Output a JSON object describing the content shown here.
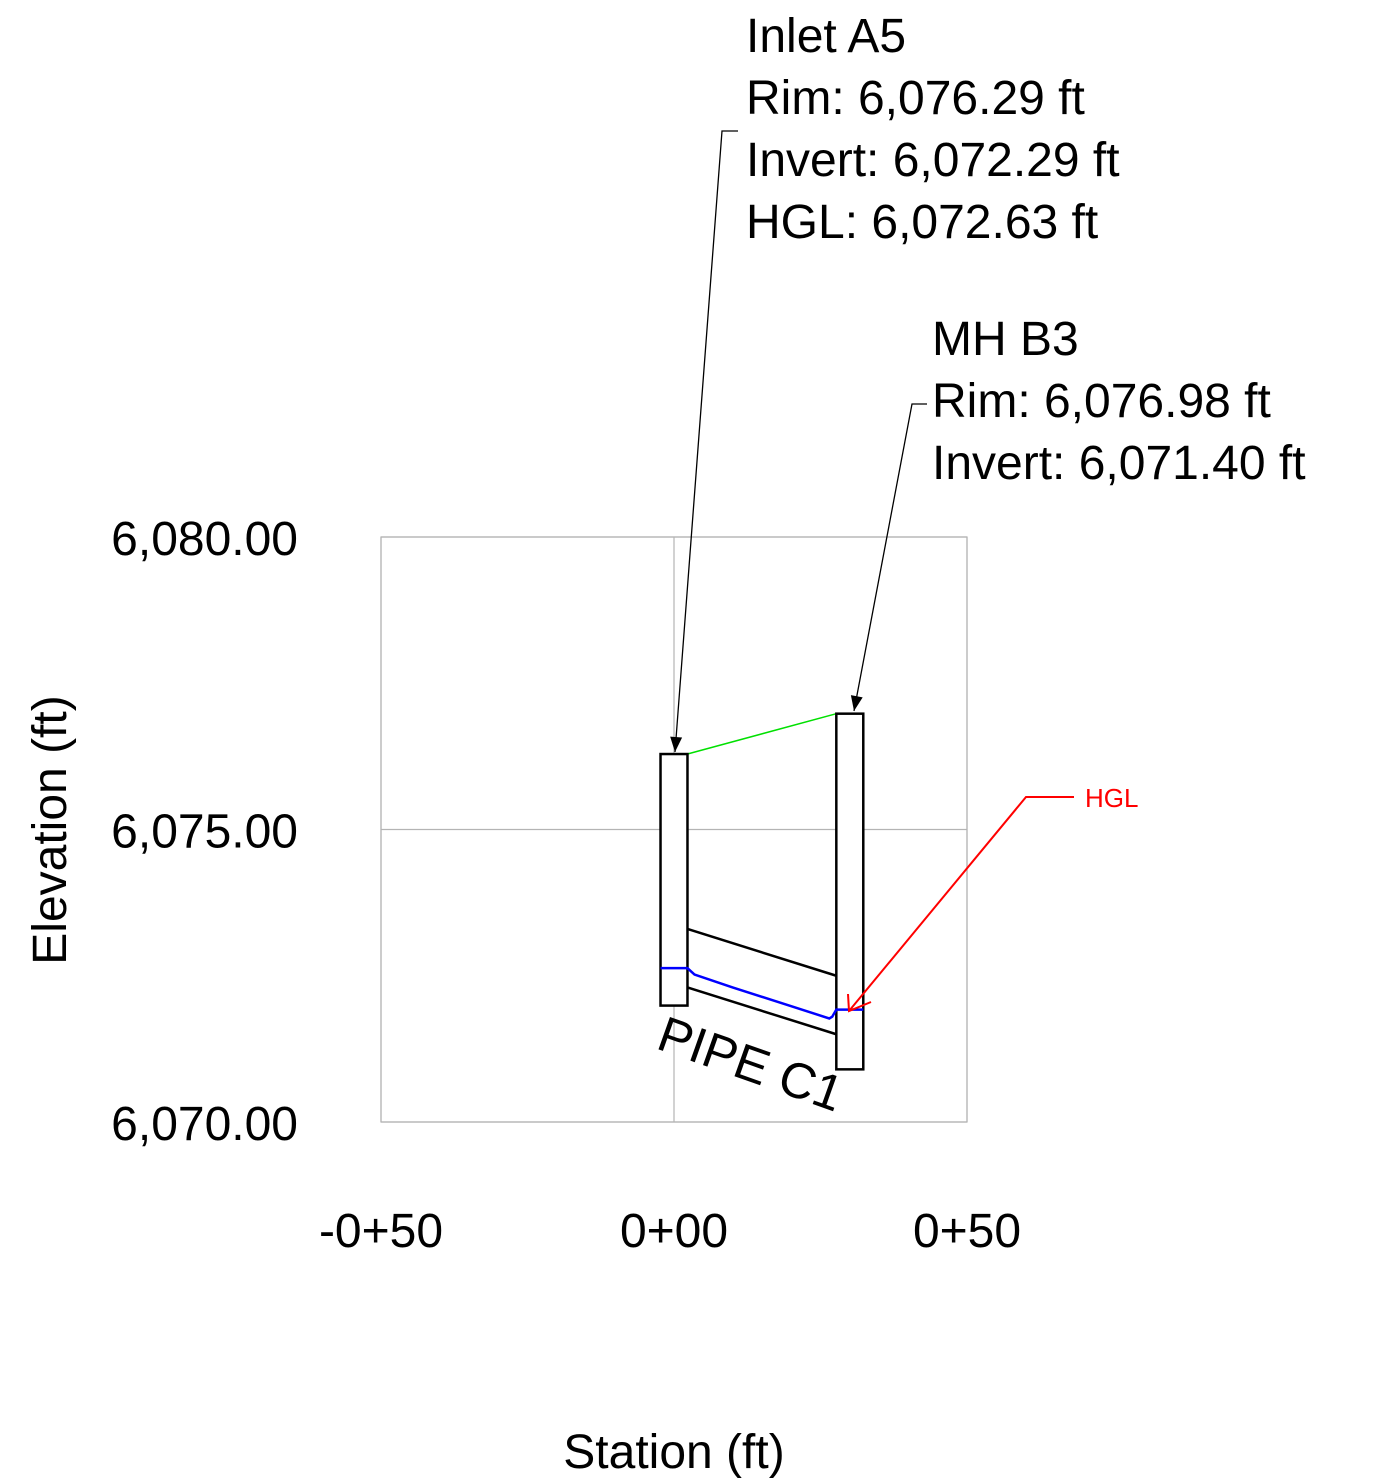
{
  "chart_data": {
    "type": "profile",
    "xlabel": "Station (ft)",
    "ylabel": "Elevation (ft)",
    "x_ticks": [
      {
        "value": -50,
        "label": "-0+50"
      },
      {
        "value": 0,
        "label": "0+00"
      },
      {
        "value": 50,
        "label": "0+50"
      }
    ],
    "y_ticks": [
      {
        "value": 6070,
        "label": "6,070.00"
      },
      {
        "value": 6075,
        "label": "6,075.00"
      },
      {
        "value": 6080,
        "label": "6,080.00"
      }
    ],
    "xlim": [
      -50,
      50
    ],
    "ylim": [
      6070,
      6080
    ],
    "grid": true,
    "structures": [
      {
        "name": "Inlet A5",
        "station": 0,
        "rim": 6076.29,
        "invert": 6072.29,
        "hgl": 6072.63,
        "label_lines": [
          "Inlet A5",
          "Rim: 6,076.29 ft",
          "Invert: 6,072.29 ft",
          "HGL: 6,072.63 ft"
        ]
      },
      {
        "name": "MH B3",
        "station": 30,
        "rim": 6076.98,
        "invert": 6071.4,
        "label_lines": [
          "MH B3",
          "Rim: 6,076.98 ft",
          "Invert: 6,071.40 ft"
        ]
      }
    ],
    "pipe": {
      "name": "PIPE C1",
      "start_station": 2.3,
      "end_station": 27.7,
      "invert_up": 6072.3,
      "invert_down": 6071.5,
      "crown_up": 6073.3,
      "crown_down": 6072.5
    },
    "hgl_line": {
      "label": "HGL",
      "points": [
        [
          -2.3,
          6072.63
        ],
        [
          2.3,
          6072.63
        ],
        [
          3.5,
          6072.52
        ],
        [
          10,
          6072.3
        ],
        [
          20,
          6071.98
        ],
        [
          26.5,
          6071.77
        ],
        [
          27.0,
          6071.8
        ],
        [
          27.7,
          6071.92
        ],
        [
          32.3,
          6071.92
        ]
      ]
    },
    "colors": {
      "grid": "#b4b4b4",
      "structure": "#000000",
      "pipe": "#000000",
      "rim_line": "#00e000",
      "hgl": "#0000ff",
      "hgl_callout": "#ff0000",
      "leader": "#000000"
    }
  }
}
